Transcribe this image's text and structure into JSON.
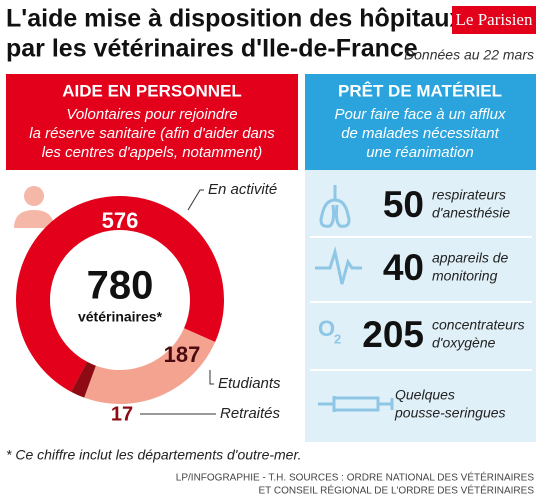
{
  "header": {
    "title": [
      "L'aide mise à disposition des hôpitaux",
      "par les vétérinaires d'Ile-de-France"
    ],
    "logo": "Le Parisien",
    "date": "Données au 22 mars"
  },
  "chart_data": {
    "type": "pie",
    "donut": true,
    "title": "AIDE EN PERSONNEL",
    "subtitle": [
      "Volontaires pour rejoindre",
      "la réserve sanitaire (afin d'aider dans",
      "les centres d'appels, notamment)"
    ],
    "total": 780,
    "total_label": "vétérinaires*",
    "categories": [
      "En activité",
      "Etudiants",
      "Retraités"
    ],
    "values": [
      576,
      187,
      17
    ],
    "colors": [
      "#e2001a",
      "#f5a391",
      "#8e0b14"
    ]
  },
  "equipment": {
    "title": "PRÊT DE MATÉRIEL",
    "subtitle": [
      "Pour faire face à un afflux",
      "de malades nécessitant",
      "une réanimation"
    ],
    "items": [
      {
        "value": 50,
        "label": [
          "respirateurs",
          "d'anesthésie"
        ]
      },
      {
        "value": 40,
        "label": [
          "appareils de",
          "monitoring"
        ]
      },
      {
        "value": 205,
        "label": [
          "concentrateurs",
          "d'oxygène"
        ],
        "icon_text": [
          "O",
          "2"
        ]
      },
      {
        "label": [
          "Quelques",
          "pousse-seringues"
        ]
      }
    ]
  },
  "footnote": "* Ce chiffre inclut les départements d'outre-mer.",
  "credits": [
    "LP/INFOGRAPHIE - T.H. SOURCES : ORDRE NATIONAL DES VÉTÉRINAIRES",
    "ET CONSEIL RÉGIONAL DE L'ORDRE DES VÉTÉRINAIRES"
  ]
}
